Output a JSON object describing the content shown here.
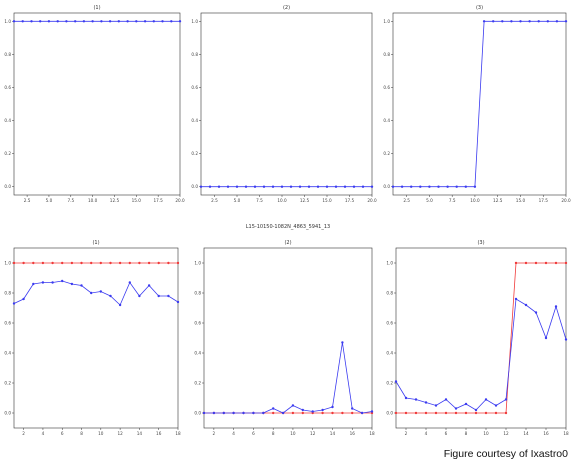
{
  "figure": {
    "suptitle": "L15-10150-1082N_4863_5941_13",
    "caption": "Figure courtesy of Ixastro0"
  },
  "colors": {
    "blue": "#3b3bf0",
    "red": "#f03a3a",
    "axes": "#333333"
  },
  "chart_data": [
    {
      "type": "line",
      "title": "(1)",
      "x": [
        1,
        2,
        3,
        4,
        5,
        6,
        7,
        8,
        9,
        10,
        11,
        12,
        13,
        14,
        15,
        16,
        17,
        18,
        19,
        20
      ],
      "xlim": [
        1,
        20
      ],
      "ylim": [
        -0.05,
        1.05
      ],
      "xticks": [
        "2.5",
        "5.0",
        "7.5",
        "10.0",
        "12.5",
        "15.0",
        "17.5",
        "20.0"
      ],
      "yticks": [
        "0.0",
        "0.2",
        "0.4",
        "0.6",
        "0.8",
        "1.0"
      ],
      "series": [
        {
          "color": "blue",
          "values": [
            1,
            1,
            1,
            1,
            1,
            1,
            1,
            1,
            1,
            1,
            1,
            1,
            1,
            1,
            1,
            1,
            1,
            1,
            1,
            1
          ]
        }
      ]
    },
    {
      "type": "line",
      "title": "(2)",
      "x": [
        1,
        2,
        3,
        4,
        5,
        6,
        7,
        8,
        9,
        10,
        11,
        12,
        13,
        14,
        15,
        16,
        17,
        18,
        19,
        20
      ],
      "xlim": [
        1,
        20
      ],
      "ylim": [
        -0.05,
        1.05
      ],
      "xticks": [
        "2.5",
        "5.0",
        "7.5",
        "10.0",
        "12.5",
        "15.0",
        "17.5",
        "20.0"
      ],
      "yticks": [
        "0.0",
        "0.2",
        "0.4",
        "0.6",
        "0.8",
        "1.0"
      ],
      "series": [
        {
          "color": "blue",
          "values": [
            0,
            0,
            0,
            0,
            0,
            0,
            0,
            0,
            0,
            0,
            0,
            0,
            0,
            0,
            0,
            0,
            0,
            0,
            0,
            0
          ]
        }
      ]
    },
    {
      "type": "line",
      "title": "(3)",
      "x": [
        1,
        2,
        3,
        4,
        5,
        6,
        7,
        8,
        9,
        10,
        11,
        12,
        13,
        14,
        15,
        16,
        17,
        18,
        19,
        20
      ],
      "xlim": [
        1,
        20
      ],
      "ylim": [
        -0.05,
        1.05
      ],
      "xticks": [
        "2.5",
        "5.0",
        "7.5",
        "10.0",
        "12.5",
        "15.0",
        "17.5",
        "20.0"
      ],
      "yticks": [
        "0.0",
        "0.2",
        "0.4",
        "0.6",
        "0.8",
        "1.0"
      ],
      "series": [
        {
          "color": "blue",
          "values": [
            0,
            0,
            0,
            0,
            0,
            0,
            0,
            0,
            0,
            0,
            1,
            1,
            1,
            1,
            1,
            1,
            1,
            1,
            1,
            1
          ]
        }
      ]
    },
    {
      "type": "line",
      "title": "(1)",
      "x": [
        1,
        2,
        3,
        4,
        5,
        6,
        7,
        8,
        9,
        10,
        11,
        12,
        13,
        14,
        15,
        16,
        17,
        18
      ],
      "xlim": [
        1,
        18
      ],
      "ylim": [
        -0.1,
        1.1
      ],
      "xticks": [
        "2",
        "4",
        "6",
        "8",
        "10",
        "12",
        "14",
        "16",
        "18"
      ],
      "yticks": [
        "0.0",
        "0.2",
        "0.4",
        "0.6",
        "0.8",
        "1.0"
      ],
      "series": [
        {
          "color": "red",
          "values": [
            1,
            1,
            1,
            1,
            1,
            1,
            1,
            1,
            1,
            1,
            1,
            1,
            1,
            1,
            1,
            1,
            1,
            1
          ]
        },
        {
          "color": "blue",
          "values": [
            0.73,
            0.76,
            0.86,
            0.87,
            0.87,
            0.88,
            0.86,
            0.85,
            0.8,
            0.81,
            0.78,
            0.72,
            0.87,
            0.78,
            0.85,
            0.78,
            0.78,
            0.74
          ]
        }
      ]
    },
    {
      "type": "line",
      "title": "(2)",
      "x": [
        1,
        2,
        3,
        4,
        5,
        6,
        7,
        8,
        9,
        10,
        11,
        12,
        13,
        14,
        15,
        16,
        17,
        18
      ],
      "xlim": [
        1,
        18
      ],
      "ylim": [
        -0.1,
        1.1
      ],
      "xticks": [
        "2",
        "4",
        "6",
        "8",
        "10",
        "12",
        "14",
        "16",
        "18"
      ],
      "yticks": [
        "0.0",
        "0.2",
        "0.4",
        "0.6",
        "0.8",
        "1.0"
      ],
      "series": [
        {
          "color": "red",
          "values": [
            0,
            0,
            0,
            0,
            0,
            0,
            0,
            0,
            0,
            0,
            0,
            0,
            0,
            0,
            0,
            0,
            0,
            0
          ]
        },
        {
          "color": "blue",
          "values": [
            0.0,
            0.0,
            0.0,
            0.0,
            0.0,
            0.0,
            0.0,
            0.03,
            0.0,
            0.05,
            0.02,
            0.01,
            0.02,
            0.04,
            0.47,
            0.03,
            0.0,
            0.01
          ]
        }
      ]
    },
    {
      "type": "line",
      "title": "(3)",
      "x": [
        1,
        2,
        3,
        4,
        5,
        6,
        7,
        8,
        9,
        10,
        11,
        12,
        13,
        14,
        15,
        16,
        17,
        18
      ],
      "xlim": [
        1,
        18
      ],
      "ylim": [
        -0.1,
        1.1
      ],
      "xticks": [
        "2",
        "4",
        "6",
        "8",
        "10",
        "12",
        "14",
        "16",
        "18"
      ],
      "yticks": [
        "0.0",
        "0.2",
        "0.4",
        "0.6",
        "0.8",
        "1.0"
      ],
      "series": [
        {
          "color": "red",
          "values": [
            0,
            0,
            0,
            0,
            0,
            0,
            0,
            0,
            0,
            0,
            0,
            0,
            1,
            1,
            1,
            1,
            1,
            1
          ]
        },
        {
          "color": "blue",
          "values": [
            0.21,
            0.1,
            0.09,
            0.07,
            0.05,
            0.09,
            0.03,
            0.06,
            0.02,
            0.09,
            0.05,
            0.09,
            0.76,
            0.72,
            0.67,
            0.5,
            0.71,
            0.49
          ]
        }
      ]
    }
  ]
}
